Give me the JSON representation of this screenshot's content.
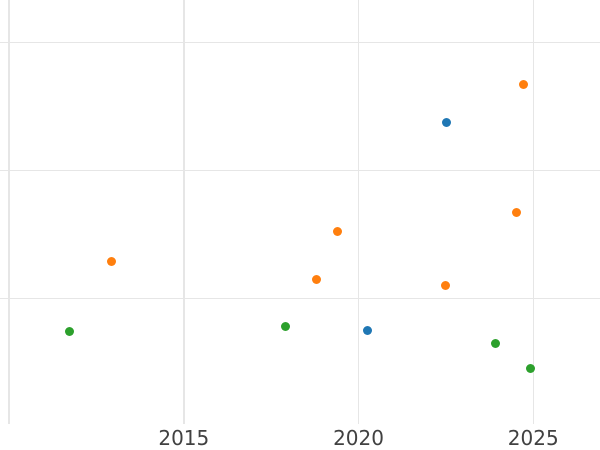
{
  "figure": {
    "background_color": "#ffffff",
    "gridline_color": "#e6e6e6",
    "tick_label_color": "#414141"
  },
  "chart_data": {
    "type": "scatter",
    "title": "",
    "xlabel": "",
    "ylabel": "",
    "grid": true,
    "legend_visible": false,
    "marker_diameter_px": 9,
    "x_axis": {
      "tick_labels": [
        "2015",
        "2020",
        "2025"
      ],
      "tick_values": [
        2015,
        2020,
        2025
      ],
      "gridline_values": [
        2010,
        2015,
        2020,
        2025
      ],
      "range": [
        2009.74,
        2026.91
      ]
    },
    "y_axis": {
      "tick_labels": [],
      "units": "unlabeled gridline units (y tick labels cropped out of view)",
      "gridline_values": [
        1,
        2,
        3
      ],
      "range": [
        0,
        3.33
      ]
    },
    "series": [
      {
        "name": "blue",
        "color": "#1f77b4",
        "points": [
          {
            "x": 2020.25,
            "y": 0.75
          },
          {
            "x": 2022.53,
            "y": 2.37
          }
        ]
      },
      {
        "name": "orange",
        "color": "#ff7f0e",
        "points": [
          {
            "x": 2012.92,
            "y": 1.29
          },
          {
            "x": 2018.81,
            "y": 1.15
          },
          {
            "x": 2019.4,
            "y": 1.52
          },
          {
            "x": 2022.48,
            "y": 1.1
          },
          {
            "x": 2024.53,
            "y": 1.67
          },
          {
            "x": 2024.73,
            "y": 2.67
          }
        ]
      },
      {
        "name": "green",
        "color": "#2ca02c",
        "points": [
          {
            "x": 2011.73,
            "y": 0.74
          },
          {
            "x": 2017.92,
            "y": 0.78
          },
          {
            "x": 2023.92,
            "y": 0.65
          },
          {
            "x": 2024.92,
            "y": 0.45
          }
        ]
      }
    ]
  }
}
